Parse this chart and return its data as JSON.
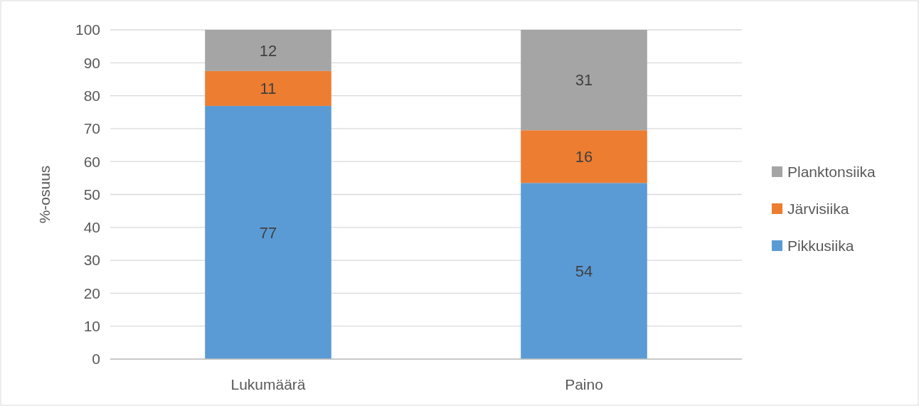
{
  "chart_data": {
    "type": "bar",
    "stacked": true,
    "ylabel": "%-osuus",
    "categories": [
      "Lukumäärä",
      "Paino"
    ],
    "series": [
      {
        "name": "Pikkusiika",
        "color": "#5b9bd5",
        "values": [
          76.9,
          53.5
        ],
        "value_labels": [
          "77",
          "54"
        ]
      },
      {
        "name": "Järvisiika",
        "color": "#ed7d31",
        "values": [
          10.6,
          16.0
        ],
        "value_labels": [
          "11",
          "16"
        ]
      },
      {
        "name": "Planktonsiika",
        "color": "#a5a5a5",
        "values": [
          12.5,
          30.5
        ],
        "value_labels": [
          "12",
          "31"
        ]
      }
    ],
    "ylim": [
      0,
      100
    ],
    "yticks": [
      0,
      10,
      20,
      30,
      40,
      50,
      60,
      70,
      80,
      90,
      100
    ],
    "grid": "y",
    "legend": "right"
  }
}
